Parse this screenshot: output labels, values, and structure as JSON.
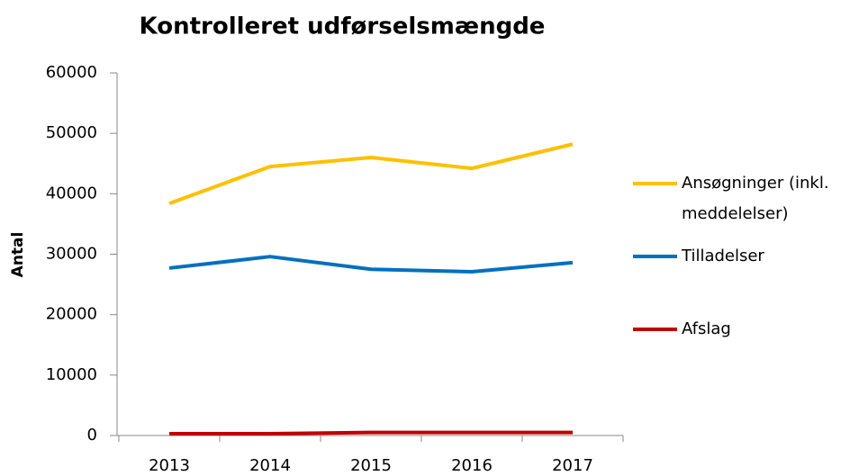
{
  "chart_data": {
    "type": "line",
    "title": "Kontrolleret udførselsmængde",
    "ylabel": "Antal",
    "categories": [
      "2013",
      "2014",
      "2015",
      "2016",
      "2017"
    ],
    "series": [
      {
        "name": "Ansøgninger (inkl. meddelelser)",
        "color": "#ffc000",
        "values": [
          38400,
          44500,
          46000,
          44200,
          48200
        ]
      },
      {
        "name": "Tilladelser",
        "color": "#0070c0",
        "values": [
          27700,
          29600,
          27500,
          27100,
          28600
        ]
      },
      {
        "name": "Afslag",
        "color": "#c00000",
        "values": [
          300,
          300,
          500,
          500,
          500
        ]
      }
    ],
    "ylim": [
      0,
      60000
    ],
    "yticks": [
      0,
      10000,
      20000,
      30000,
      40000,
      50000,
      60000
    ],
    "grid": false,
    "legend": "right"
  }
}
